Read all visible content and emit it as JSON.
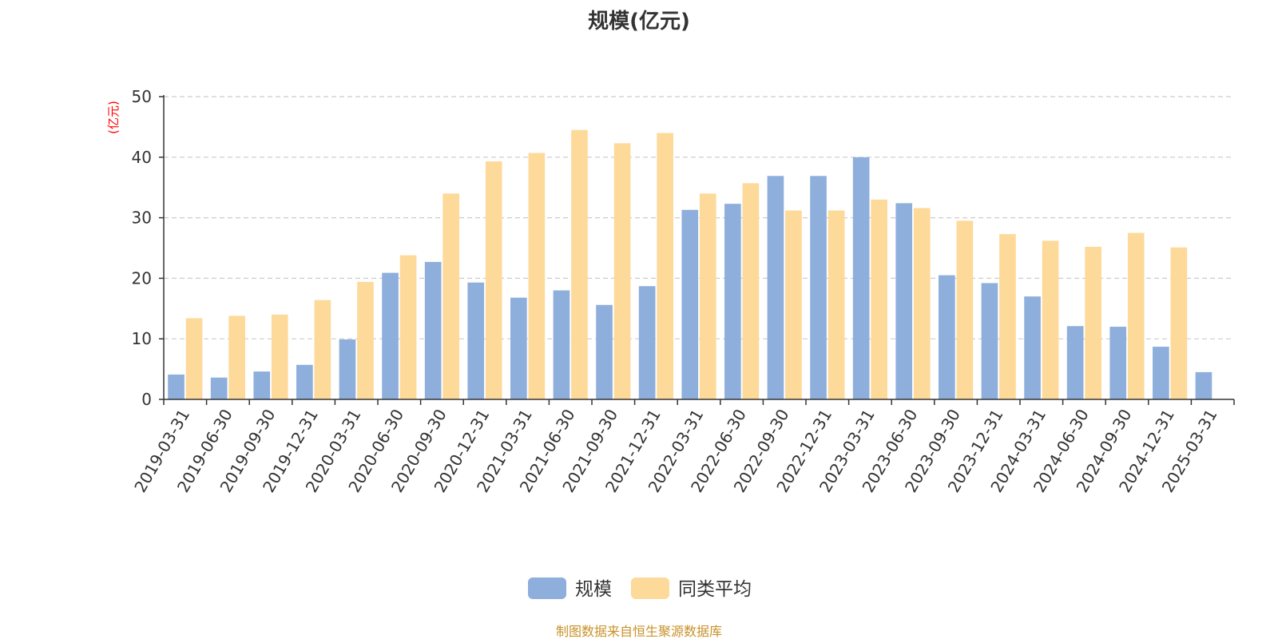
{
  "colors": {
    "series_1": "#8eaedc",
    "series_2": "#fdd99a",
    "axis": "#333333",
    "grid": "#cccccc",
    "unit_label": "#ff0000",
    "source_text": "#c8922a"
  },
  "chart_data": {
    "type": "bar",
    "title": "规模(亿元)",
    "ylabel": "(亿元)",
    "xlabel": "",
    "ylim": [
      0,
      50
    ],
    "yticks": [
      "0",
      "10",
      "20",
      "30",
      "40",
      "50"
    ],
    "grid": true,
    "legend_position": "bottom",
    "categories": [
      "2019-03-31",
      "2019-06-30",
      "2019-09-30",
      "2019-12-31",
      "2020-03-31",
      "2020-06-30",
      "2020-09-30",
      "2020-12-31",
      "2021-03-31",
      "2021-06-30",
      "2021-09-30",
      "2021-12-31",
      "2022-03-31",
      "2022-06-30",
      "2022-09-30",
      "2022-12-31",
      "2023-03-31",
      "2023-06-30",
      "2023-09-30",
      "2023-12-31",
      "2024-03-31",
      "2024-06-30",
      "2024-09-30",
      "2024-12-31",
      "2025-03-31"
    ],
    "series": [
      {
        "name": "规模",
        "values": [
          4.1,
          3.6,
          4.6,
          5.7,
          9.9,
          20.9,
          22.7,
          19.3,
          16.8,
          18.0,
          15.6,
          18.7,
          31.3,
          32.3,
          36.9,
          36.9,
          40.0,
          32.4,
          20.5,
          19.2,
          17.0,
          12.1,
          12.0,
          8.7,
          4.5
        ]
      },
      {
        "name": "同类平均",
        "values": [
          13.4,
          13.8,
          14.0,
          16.4,
          19.4,
          23.8,
          34.0,
          39.3,
          40.7,
          44.5,
          42.3,
          44.0,
          34.0,
          35.7,
          31.2,
          31.2,
          33.0,
          31.6,
          29.5,
          27.3,
          26.2,
          25.2,
          27.5,
          25.1,
          null
        ]
      }
    ]
  },
  "source": "制图数据来自恒生聚源数据库"
}
